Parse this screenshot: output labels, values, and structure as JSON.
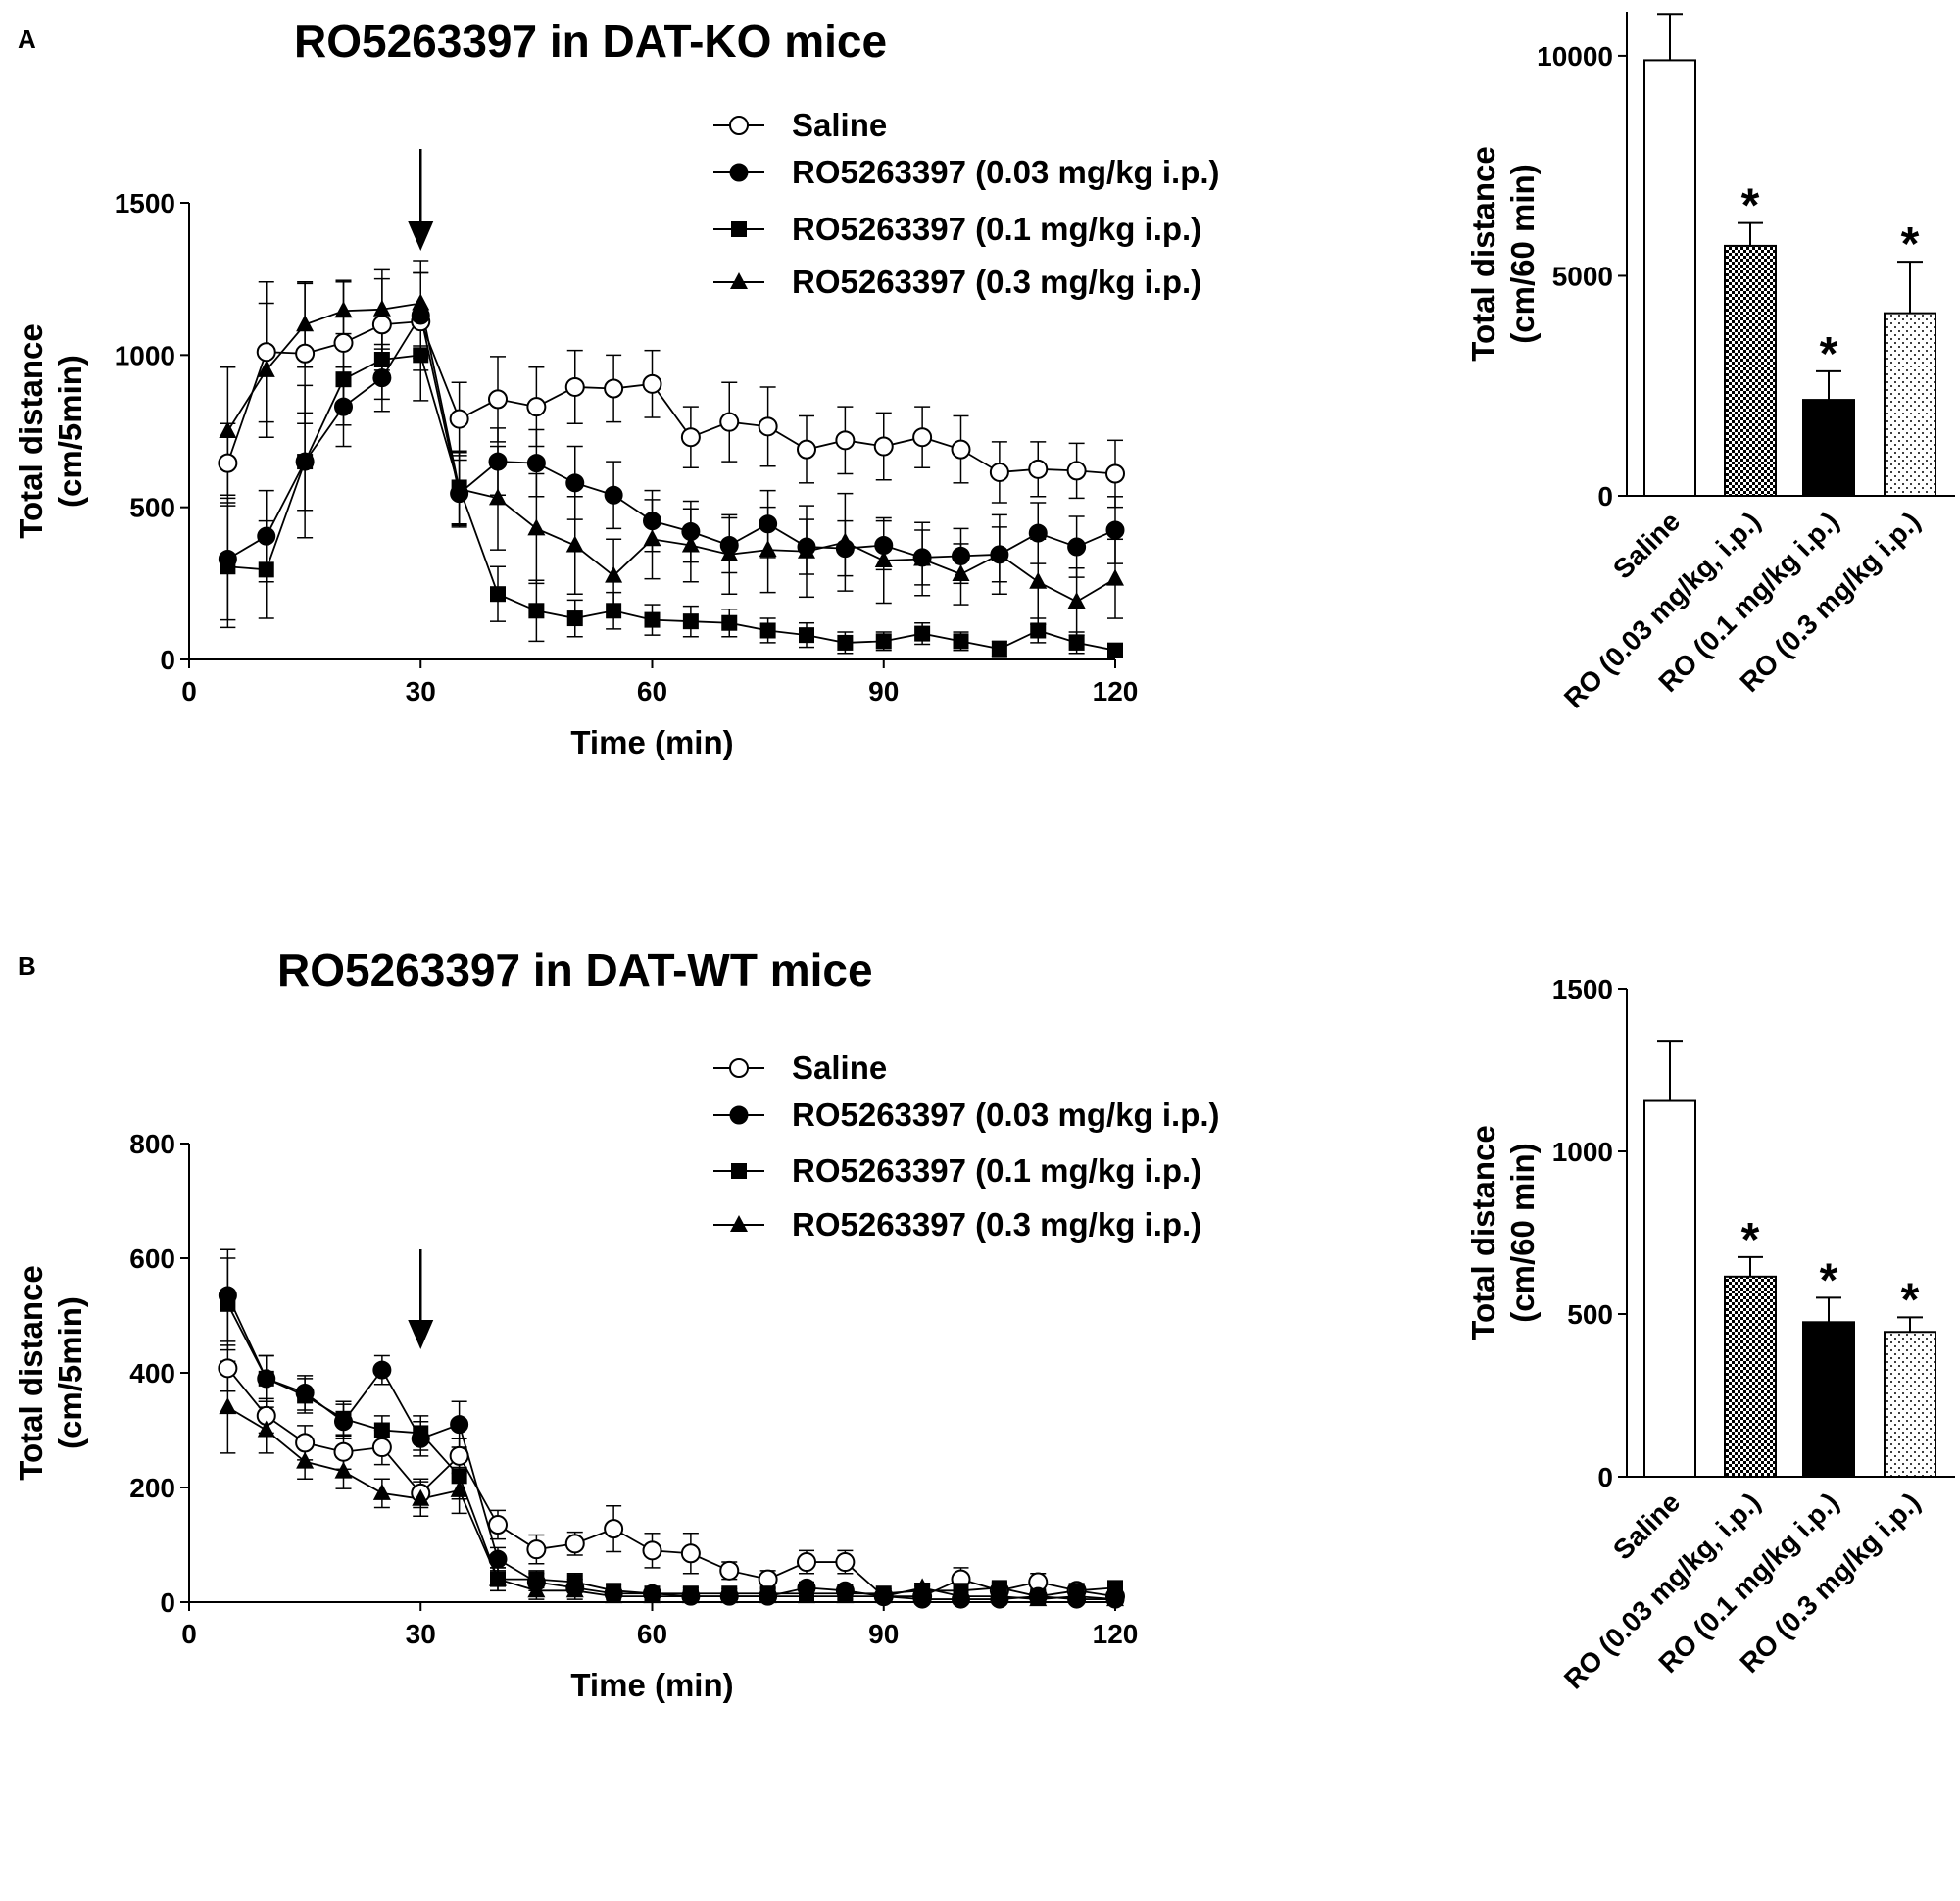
{
  "chart_data": [
    {
      "panel": "A",
      "type": "line",
      "title": "RO5263397 in DAT-KO mice",
      "xlabel": "Time (min)",
      "ylabel": [
        "Total distance",
        "(cm/5min)"
      ],
      "xlim": [
        0,
        120
      ],
      "ylim": [
        0,
        1500
      ],
      "xticks": [
        0,
        30,
        60,
        90,
        120
      ],
      "yticks": [
        0,
        500,
        1000,
        1500
      ],
      "arrow_at": 30,
      "x": [
        5,
        10,
        15,
        20,
        25,
        30,
        35,
        40,
        45,
        50,
        55,
        60,
        65,
        70,
        75,
        80,
        85,
        90,
        95,
        100,
        105,
        110,
        115,
        120
      ],
      "series": [
        {
          "name": "Saline",
          "marker": "circle-open",
          "values": [
            645,
            1010,
            1005,
            1040,
            1100,
            1110,
            790,
            855,
            830,
            895,
            890,
            905,
            730,
            780,
            765,
            690,
            720,
            700,
            730,
            690,
            615,
            625,
            620,
            610
          ],
          "errors": [
            130,
            230,
            230,
            200,
            150,
            160,
            120,
            140,
            130,
            120,
            110,
            110,
            100,
            130,
            130,
            110,
            110,
            110,
            100,
            110,
            100,
            90,
            90,
            110
          ]
        },
        {
          "name": "RO5263397 (0.03 mg/kg i.p.)",
          "marker": "circle-filled",
          "values": [
            330,
            405,
            650,
            830,
            925,
            1130,
            545,
            650,
            645,
            580,
            540,
            455,
            420,
            375,
            445,
            370,
            365,
            375,
            335,
            340,
            345,
            415,
            370,
            425
          ],
          "errors": [
            200,
            150,
            250,
            130,
            110,
            140,
            110,
            110,
            110,
            120,
            110,
            100,
            100,
            90,
            110,
            90,
            90,
            80,
            90,
            90,
            90,
            100,
            100,
            110
          ]
        },
        {
          "name": "RO5263397 (0.1 mg/kg i.p.)",
          "marker": "square-filled",
          "values": [
            305,
            295,
            650,
            920,
            985,
            1000,
            565,
            215,
            160,
            135,
            160,
            130,
            125,
            120,
            95,
            80,
            55,
            60,
            85,
            60,
            35,
            95,
            55,
            30
          ],
          "errors": [
            200,
            160,
            160,
            150,
            130,
            150,
            120,
            90,
            100,
            60,
            60,
            50,
            50,
            45,
            40,
            40,
            35,
            30,
            35,
            30,
            25,
            40,
            35,
            20
          ]
        },
        {
          "name": "RO5263397 (0.3 mg/kg i.p.)",
          "marker": "triangle-filled",
          "values": [
            750,
            950,
            1100,
            1145,
            1150,
            1170,
            560,
            530,
            430,
            375,
            275,
            395,
            375,
            345,
            360,
            355,
            385,
            325,
            330,
            280,
            345,
            255,
            190,
            265
          ]
        },
        {
          "name": "_errors_triangle",
          "values": [
            210,
            220,
            140,
            100,
            130,
            140,
            120,
            170,
            180,
            160,
            120,
            130,
            120,
            130,
            140,
            150,
            160,
            140,
            120,
            100,
            130,
            140,
            110,
            130
          ]
        }
      ]
    },
    {
      "panel": "A-bar",
      "type": "bar",
      "ylabel": [
        "Total distance",
        "(cm/60 min)"
      ],
      "ylim": [
        0,
        11000
      ],
      "yticks": [
        0,
        5000,
        10000
      ],
      "categories": [
        "Saline",
        "RO (0.03 mg/kg, i.p.)",
        "RO (0.1 mg/kg i.p.)",
        "RO (0.3 mg/kg i.p.)"
      ],
      "values": [
        9900,
        5680,
        2180,
        4150
      ],
      "errors": [
        1050,
        520,
        650,
        1170
      ],
      "fills": [
        "white",
        "checker",
        "black",
        "dots"
      ],
      "annotations": [
        "",
        "*",
        "*",
        "*"
      ]
    },
    {
      "panel": "B",
      "type": "line",
      "title": "RO5263397 in DAT-WT mice",
      "xlabel": "Time (min)",
      "ylabel": [
        "Total distance",
        "(cm/5min)"
      ],
      "xlim": [
        0,
        120
      ],
      "ylim": [
        0,
        800
      ],
      "xticks": [
        0,
        30,
        60,
        90,
        120
      ],
      "yticks": [
        0,
        200,
        400,
        600,
        800
      ],
      "arrow_at": 30,
      "x": [
        5,
        10,
        15,
        20,
        25,
        30,
        35,
        40,
        45,
        50,
        55,
        60,
        65,
        70,
        75,
        80,
        85,
        90,
        95,
        100,
        105,
        110,
        115,
        120
      ],
      "series": [
        {
          "name": "Saline",
          "marker": "circle-open",
          "values": [
            408,
            325,
            278,
            262,
            270,
            190,
            255,
            135,
            92,
            102,
            128,
            90,
            85,
            55,
            40,
            70,
            70,
            10,
            10,
            40,
            20,
            35,
            20,
            10
          ],
          "errors": [
            40,
            30,
            30,
            30,
            30,
            25,
            30,
            25,
            25,
            20,
            40,
            30,
            35,
            15,
            15,
            20,
            20,
            10,
            10,
            20,
            15,
            15,
            10,
            10
          ]
        },
        {
          "name": "RO5263397 (0.03 mg/kg i.p.)",
          "marker": "circle-filled",
          "values": [
            535,
            390,
            365,
            315,
            405,
            285,
            310,
            75,
            35,
            25,
            15,
            15,
            10,
            10,
            10,
            25,
            20,
            10,
            5,
            5,
            5,
            10,
            5,
            5
          ]
        },
        {
          "name": "RO5263397 (0.1 mg/kg i.p.)",
          "marker": "square-filled",
          "values": [
            520,
            390,
            360,
            320,
            300,
            295,
            220,
            40,
            40,
            35,
            20,
            15,
            15,
            15,
            15,
            15,
            15,
            15,
            20,
            20,
            25,
            10,
            20,
            25
          ]
        },
        {
          "name": "RO5263397 (0.3 mg/kg i.p.)",
          "marker": "triangle-filled",
          "values": [
            340,
            300,
            245,
            228,
            190,
            180,
            195,
            40,
            20,
            20,
            10,
            10,
            10,
            10,
            10,
            10,
            10,
            10,
            25,
            10,
            10,
            5,
            10,
            5
          ]
        },
        {
          "name": "_errors_filled",
          "values": [
            80,
            40,
            30,
            30,
            25,
            30,
            40,
            20,
            15,
            15,
            10,
            10,
            10,
            8,
            8,
            10,
            10,
            8,
            8,
            8,
            8,
            8,
            8,
            8
          ]
        }
      ]
    },
    {
      "panel": "B-bar",
      "type": "bar",
      "ylabel": [
        "Total distance",
        "(cm/60 min)"
      ],
      "ylim": [
        0,
        1500
      ],
      "yticks": [
        0,
        500,
        1000,
        1500
      ],
      "categories": [
        "Saline",
        "RO (0.03 mg/kg, i.p.)",
        "RO (0.1 mg/kg i.p.)",
        "RO (0.3 mg/kg i.p.)"
      ],
      "values": [
        1155,
        615,
        475,
        445
      ],
      "errors": [
        185,
        60,
        75,
        45
      ],
      "fills": [
        "white",
        "checker",
        "black",
        "dots"
      ],
      "annotations": [
        "",
        "*",
        "*",
        "*"
      ]
    }
  ],
  "panels": {
    "a": {
      "letter": "A",
      "title": "RO5263397 in DAT-KO mice"
    },
    "b": {
      "letter": "B",
      "title": "RO5263397 in DAT-WT mice"
    }
  },
  "legend": {
    "entries": [
      "Saline",
      "RO5263397 (0.03 mg/kg i.p.)",
      "RO5263397 (0.1 mg/kg i.p.)",
      "RO5263397 (0.3 mg/kg i.p.)"
    ]
  }
}
